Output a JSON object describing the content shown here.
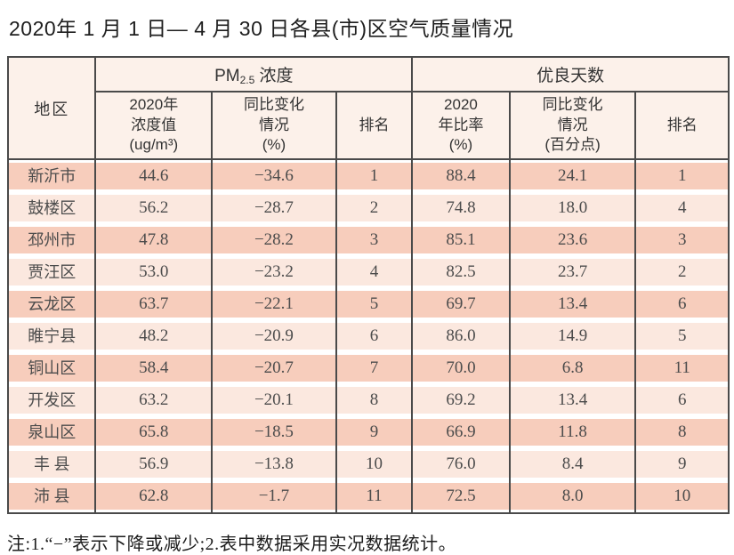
{
  "title": "2020年 1 月 1 日— 4 月 30 日各县(市)区空气质量情况",
  "table": {
    "region_header": "地区",
    "pm_group": {
      "prefix": "PM",
      "sub": "2.5",
      "suffix": " 浓度"
    },
    "good_group": "优良天数",
    "sub_headers": {
      "pm_value": [
        "2020年",
        "浓度值",
        "(ug/m³)"
      ],
      "pm_change": [
        "同比变化",
        "情况",
        "(%)"
      ],
      "pm_rank": "排名",
      "good_ratio": [
        "2020",
        "年比率",
        "(%)"
      ],
      "good_change": [
        "同比变化",
        "情况",
        "(百分点)"
      ],
      "good_rank": "排名"
    }
  },
  "rows": [
    {
      "region": "新沂市",
      "pm_value": "44.6",
      "pm_change": "−34.6",
      "pm_rank": "1",
      "good_ratio": "88.4",
      "good_change": "24.1",
      "good_rank": "1"
    },
    {
      "region": "鼓楼区",
      "pm_value": "56.2",
      "pm_change": "−28.7",
      "pm_rank": "2",
      "good_ratio": "74.8",
      "good_change": "18.0",
      "good_rank": "4"
    },
    {
      "region": "邳州市",
      "pm_value": "47.8",
      "pm_change": "−28.2",
      "pm_rank": "3",
      "good_ratio": "85.1",
      "good_change": "23.6",
      "good_rank": "3"
    },
    {
      "region": "贾汪区",
      "pm_value": "53.0",
      "pm_change": "−23.2",
      "pm_rank": "4",
      "good_ratio": "82.5",
      "good_change": "23.7",
      "good_rank": "2"
    },
    {
      "region": "云龙区",
      "pm_value": "63.7",
      "pm_change": "−22.1",
      "pm_rank": "5",
      "good_ratio": "69.7",
      "good_change": "13.4",
      "good_rank": "6"
    },
    {
      "region": "睢宁县",
      "pm_value": "48.2",
      "pm_change": "−20.9",
      "pm_rank": "6",
      "good_ratio": "86.0",
      "good_change": "14.9",
      "good_rank": "5"
    },
    {
      "region": "铜山区",
      "pm_value": "58.4",
      "pm_change": "−20.7",
      "pm_rank": "7",
      "good_ratio": "70.0",
      "good_change": "6.8",
      "good_rank": "11"
    },
    {
      "region": "开发区",
      "pm_value": "63.2",
      "pm_change": "−20.1",
      "pm_rank": "8",
      "good_ratio": "69.2",
      "good_change": "13.4",
      "good_rank": "6"
    },
    {
      "region": "泉山区",
      "pm_value": "65.8",
      "pm_change": "−18.5",
      "pm_rank": "9",
      "good_ratio": "66.9",
      "good_change": "11.8",
      "good_rank": "8"
    },
    {
      "region": "丰 县",
      "pm_value": "56.9",
      "pm_change": "−13.8",
      "pm_rank": "10",
      "good_ratio": "76.0",
      "good_change": "8.4",
      "good_rank": "9"
    },
    {
      "region": "沛 县",
      "pm_value": "62.8",
      "pm_change": "−1.7",
      "pm_rank": "11",
      "good_ratio": "72.5",
      "good_change": "8.0",
      "good_rank": "10"
    }
  ],
  "note": "注:1.“−”表示下降或减少;2.表中数据采用实况数据统计。",
  "colors": {
    "row_dark": "#f7cdbc",
    "row_light": "#fbe8df",
    "header_bg": "#fcf1ea",
    "border": "#4a4a4a"
  }
}
